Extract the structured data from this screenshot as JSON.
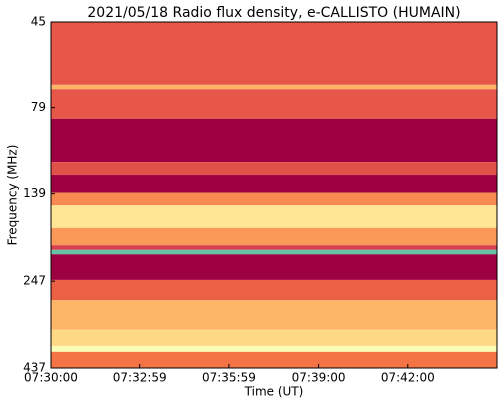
{
  "chart_data": {
    "type": "spectrogram",
    "title": "2021/05/18  Radio flux density, e-CALLISTO (HUMAIN)",
    "x_label": "Time (UT)",
    "y_label": "Frequency (MHz)",
    "xlim": [
      27000,
      27900
    ],
    "xticks": [
      {
        "value": 27000,
        "label": "07:30:00"
      },
      {
        "value": 27179,
        "label": "07:32:59"
      },
      {
        "value": 27359,
        "label": "07:35:59"
      },
      {
        "value": 27540,
        "label": "07:39:00"
      },
      {
        "value": 27720,
        "label": "07:42:00"
      }
    ],
    "ylim": [
      437,
      45
    ],
    "ylog": true,
    "yticks": [
      45,
      79,
      139,
      247,
      437
    ],
    "colormap": [
      "#9e0142",
      "#d53e4f",
      "#f46d43",
      "#fdae61",
      "#fee08b",
      "#ffffbf",
      "#e6f598",
      "#66c2a5"
    ],
    "bands": [
      {
        "from": 45,
        "to": 68,
        "intensity": 0.22
      },
      {
        "from": 68,
        "to": 70,
        "intensity": 0.45
      },
      {
        "from": 70,
        "to": 85,
        "intensity": 0.22
      },
      {
        "from": 85,
        "to": 113,
        "intensity": 0.0
      },
      {
        "from": 113,
        "to": 123,
        "intensity": 0.2
      },
      {
        "from": 123,
        "to": 138,
        "intensity": 0.0
      },
      {
        "from": 138,
        "to": 150,
        "intensity": 0.35
      },
      {
        "from": 150,
        "to": 174,
        "intensity": 0.6
      },
      {
        "from": 174,
        "to": 195,
        "intensity": 0.38
      },
      {
        "from": 195,
        "to": 201,
        "intensity": 0.15
      },
      {
        "from": 201,
        "to": 207,
        "intensity": 1.0
      },
      {
        "from": 207,
        "to": 245,
        "intensity": 0.0
      },
      {
        "from": 245,
        "to": 280,
        "intensity": 0.25
      },
      {
        "from": 280,
        "to": 340,
        "intensity": 0.45
      },
      {
        "from": 340,
        "to": 378,
        "intensity": 0.55
      },
      {
        "from": 378,
        "to": 393,
        "intensity": 0.75
      },
      {
        "from": 393,
        "to": 437,
        "intensity": 0.3
      }
    ]
  }
}
